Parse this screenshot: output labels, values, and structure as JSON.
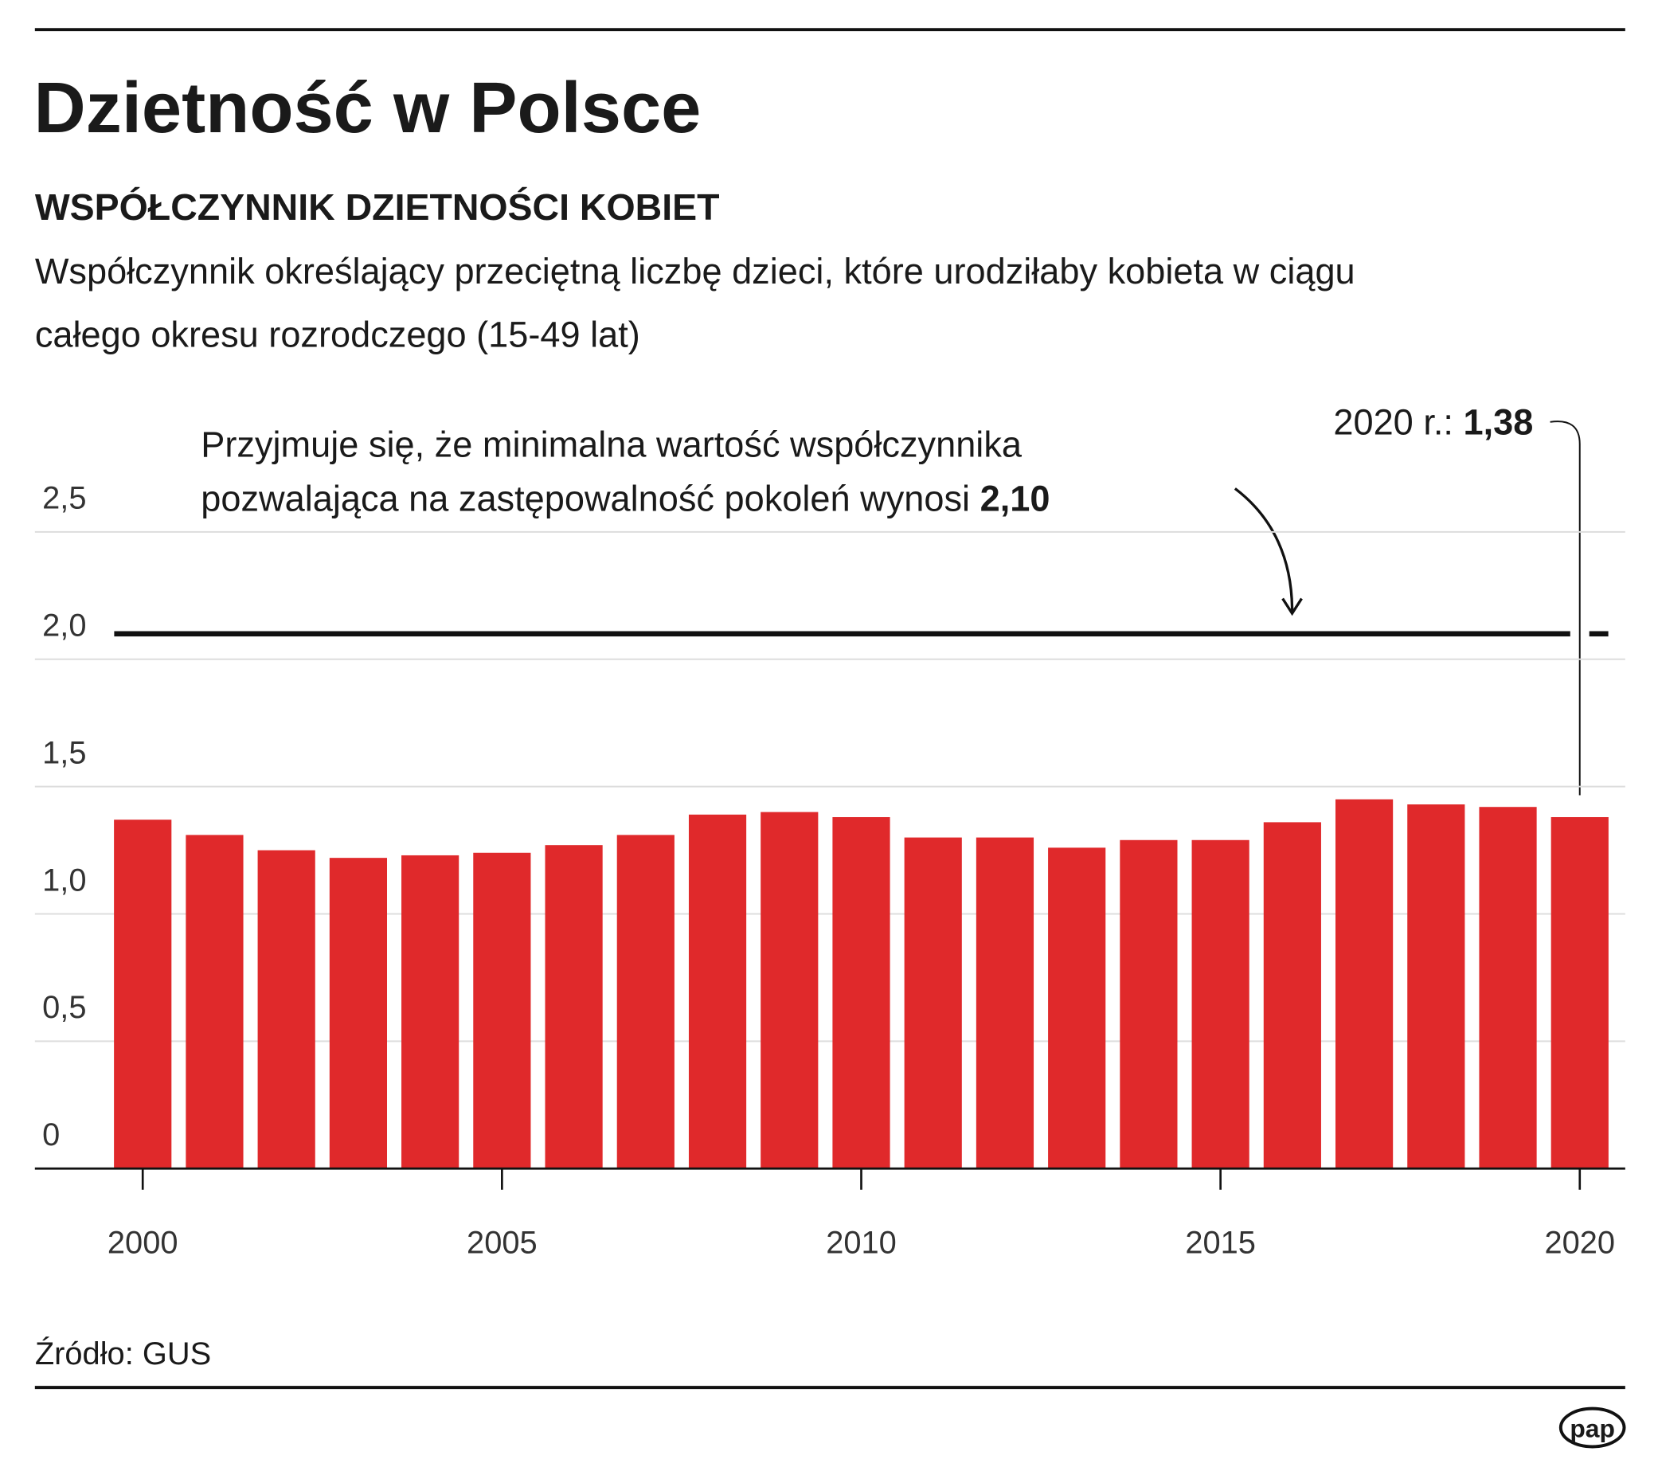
{
  "chart_data": {
    "type": "bar",
    "title": "Dzietność w Polsce",
    "subtitle": "WSPÓŁCZYNNIK DZIETNOŚCI KOBIET",
    "description": [
      "Współczynnik określający przeciętną liczbę dzieci, które urodziłaby kobieta w ciągu",
      "całego okresu rozrodczego (15-49 lat)"
    ],
    "x": [
      2000,
      2001,
      2002,
      2003,
      2004,
      2005,
      2006,
      2007,
      2008,
      2009,
      2010,
      2011,
      2012,
      2013,
      2014,
      2015,
      2016,
      2017,
      2018,
      2019,
      2020
    ],
    "values": [
      1.37,
      1.31,
      1.25,
      1.22,
      1.23,
      1.24,
      1.27,
      1.31,
      1.39,
      1.4,
      1.38,
      1.3,
      1.3,
      1.26,
      1.29,
      1.29,
      1.36,
      1.45,
      1.43,
      1.42,
      1.38
    ],
    "value_labels": [
      null,
      null,
      null,
      null,
      null,
      null,
      null,
      null,
      null,
      null,
      null,
      null,
      null,
      null,
      null,
      null,
      null,
      null,
      null,
      null,
      "1,38"
    ],
    "value_label_prefix": "2020 r.:",
    "color": "#e0292b",
    "xlim": [
      1999.5,
      2020.5
    ],
    "xticks": [
      2000,
      2005,
      2010,
      2015,
      2020
    ],
    "ylim": [
      0,
      2.5
    ],
    "yticks": [
      0,
      {
        "value": 0.5,
        "label": "0,5"
      },
      {
        "value": 1.0,
        "label": "1,0"
      },
      {
        "value": 1.5,
        "label": "1,5"
      },
      {
        "value": 2.0,
        "label": "2,0"
      },
      {
        "value": 2.5,
        "label": "2,5"
      }
    ],
    "grid": true,
    "reference_line": {
      "value": 2.1,
      "label": "2,10",
      "text": [
        "Przyjmuje się, że minimalna wartość współczynnika",
        "pozwalająca na zastępowalność pokoleń wynosi"
      ]
    },
    "source": "Źródło: GUS",
    "logo": "pap"
  }
}
